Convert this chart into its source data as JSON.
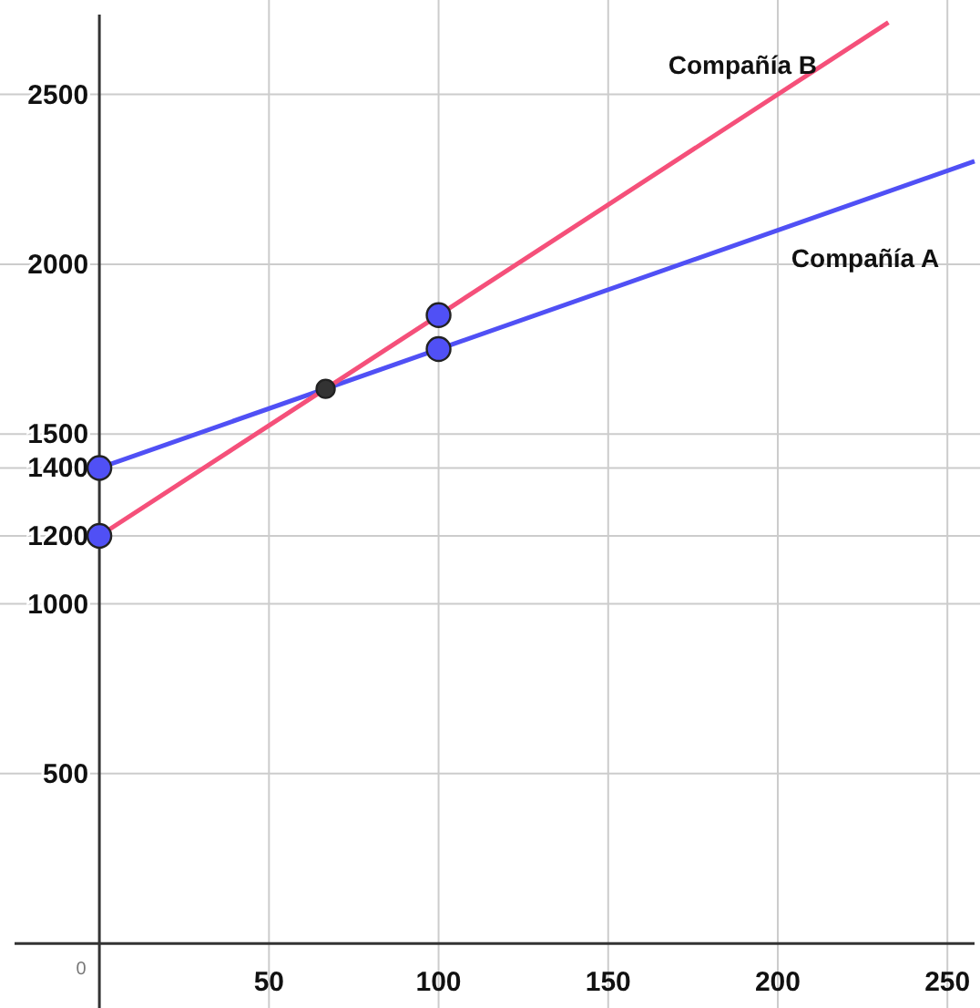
{
  "chart_data": {
    "type": "line",
    "xlim": [
      -25,
      258
    ],
    "ylim": [
      -190,
      2735
    ],
    "xticks": [
      50,
      100,
      150,
      200,
      250
    ],
    "annotations": [
      "0"
    ],
    "yticks": [
      500,
      1000,
      1200,
      1400,
      1500,
      2000,
      2500
    ],
    "grid": true,
    "line_style": "solid",
    "series": [
      {
        "name": "Compañía A",
        "color": "#5050f5",
        "x": [
          0,
          100,
          258
        ],
        "values": [
          1400,
          1750,
          2303
        ]
      },
      {
        "name": "Compañía B",
        "color": "#f5507a",
        "x": [
          0,
          100,
          232.6
        ],
        "values": [
          1200,
          1850,
          2712
        ]
      },
      {
        "type": "scatter",
        "color": "#5050f5",
        "marker": "circle",
        "x": [
          0,
          0,
          100,
          100
        ],
        "values": [
          1400,
          1200,
          1750,
          1850
        ]
      },
      {
        "type": "scatter",
        "color": "#333333",
        "marker": "circle",
        "x": [
          66.7
        ],
        "values": [
          1633
        ]
      }
    ]
  }
}
